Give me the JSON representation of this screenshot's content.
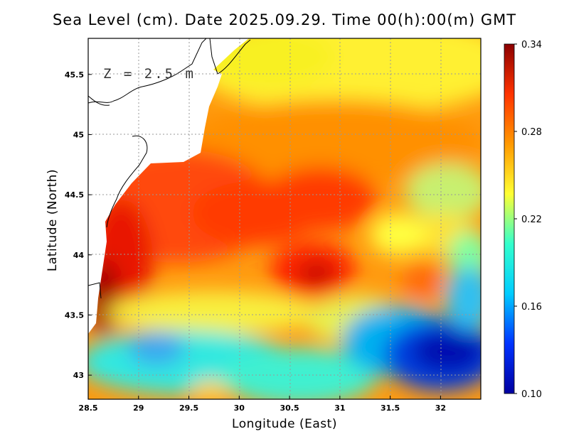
{
  "title": "Sea Level (cm). Date 2025.09.29. Time 00(h):00(m) GMT",
  "depth_label": "Z = 2.5 m",
  "x_axis": {
    "label": "Longitude (East)",
    "range": [
      28.5,
      32.4
    ],
    "ticks": [
      "28.5",
      "29",
      "29.5",
      "30",
      "30.5",
      "31",
      "31.5",
      "32"
    ]
  },
  "y_axis": {
    "label": "Latitude (North)",
    "range": [
      42.8,
      45.8
    ],
    "ticks": [
      "43",
      "43.5",
      "44",
      "44.5",
      "45",
      "45.5"
    ]
  },
  "colorbar": {
    "min": 0.1,
    "max": 0.34,
    "ticks": [
      "0.10",
      "0.16",
      "0.22",
      "0.28",
      "0.34"
    ],
    "colors": [
      "#0000a0",
      "#0033ff",
      "#00ccff",
      "#33ffcc",
      "#ffff33",
      "#ff9900",
      "#ff3300",
      "#8b0000"
    ]
  },
  "chart_data": {
    "type": "heatmap",
    "title": "Sea Level (cm). Date 2025.09.29. Time 00(h):00(m) GMT",
    "xlabel": "Longitude (East)",
    "ylabel": "Latitude (North)",
    "xlim": [
      28.5,
      32.4
    ],
    "ylim": [
      42.8,
      45.8
    ],
    "color_range": [
      0.1,
      0.34
    ],
    "features": [
      {
        "name": "coastal high",
        "lon": 28.7,
        "lat": 44.2,
        "value": 0.33
      },
      {
        "name": "central high",
        "lon": 30.8,
        "lat": 43.85,
        "value": 0.32
      },
      {
        "name": "north-central high",
        "lon": 30.2,
        "lat": 44.4,
        "value": 0.31
      },
      {
        "name": "eastern eddy",
        "lon": 31.85,
        "lat": 43.75,
        "value": 0.29
      },
      {
        "name": "southeast low",
        "lon": 32.1,
        "lat": 43.15,
        "value": 0.1
      },
      {
        "name": "southwest low",
        "lon": 29.2,
        "lat": 43.2,
        "value": 0.17
      },
      {
        "name": "northern plateau",
        "lon": 30.8,
        "lat": 45.5,
        "value": 0.26
      }
    ]
  }
}
